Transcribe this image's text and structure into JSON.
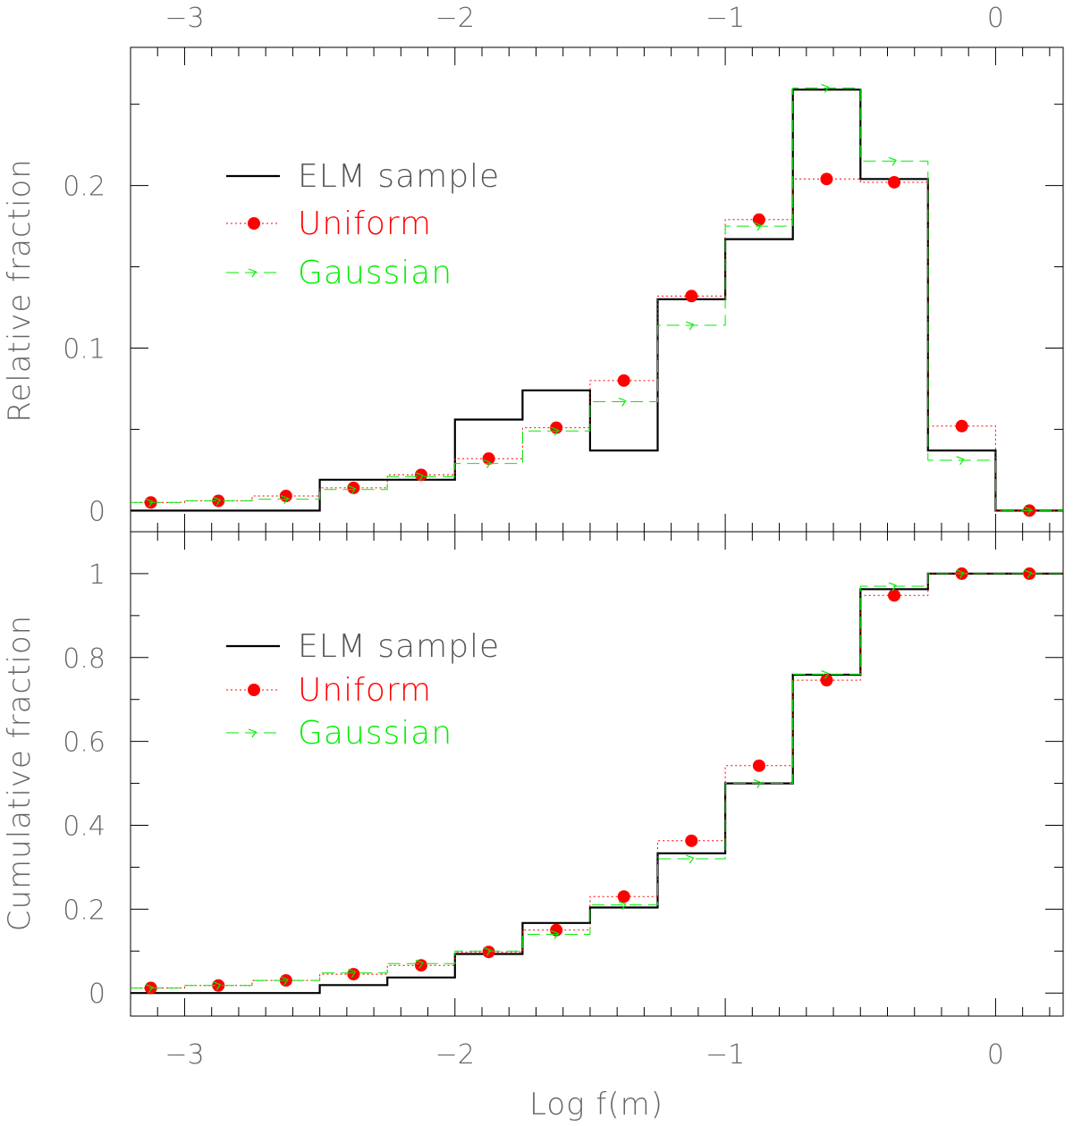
{
  "chart_data": [
    {
      "type": "step-histogram",
      "panel": "top",
      "title": "",
      "xlabel": "",
      "ylabel": "Relative fraction",
      "xlim": [
        -3.2,
        0.25
      ],
      "ylim": [
        -0.013,
        0.285
      ],
      "x_ticks": [
        -3,
        -2,
        -1,
        0
      ],
      "x_tick_labels": [
        "−3",
        "−2",
        "−1",
        "0"
      ],
      "y_ticks": [
        0,
        0.1,
        0.2
      ],
      "y_tick_labels": [
        "0",
        "0.1",
        "0.2"
      ],
      "bin_edges": [
        -3.25,
        -3.0,
        -2.75,
        -2.5,
        -2.25,
        -2.0,
        -1.75,
        -1.5,
        -1.25,
        -1.0,
        -0.75,
        -0.5,
        -0.25,
        0.0,
        0.25
      ],
      "series": [
        {
          "name": "ELM sample",
          "style": "solid-step",
          "color": "#000000",
          "values": [
            0,
            0,
            0,
            0.019,
            0.019,
            0.056,
            0.074,
            0.037,
            0.13,
            0.167,
            0.259,
            0.204,
            0.037,
            0
          ]
        },
        {
          "name": "Uniform",
          "style": "dotted-step-with-points",
          "color": "#ff0000",
          "values": [
            0.005,
            0.006,
            0.009,
            0.014,
            0.022,
            0.032,
            0.051,
            0.08,
            0.132,
            0.179,
            0.204,
            0.202,
            0.052,
            0
          ]
        },
        {
          "name": "Gaussian",
          "style": "dashed-step-with-triangles",
          "color": "#00ee00",
          "values": [
            0.005,
            0.006,
            0.007,
            0.013,
            0.021,
            0.029,
            0.049,
            0.067,
            0.114,
            0.175,
            0.26,
            0.215,
            0.031,
            0
          ]
        }
      ],
      "legend": {
        "position": "upper-left",
        "entries": [
          "ELM sample",
          "Uniform",
          "Gaussian"
        ]
      }
    },
    {
      "type": "step-histogram",
      "panel": "bottom",
      "title": "",
      "xlabel": "Log f(m)",
      "ylabel": "Cumulative fraction",
      "xlim": [
        -3.2,
        0.25
      ],
      "ylim": [
        -0.055,
        1.1
      ],
      "x_ticks": [
        -3,
        -2,
        -1,
        0
      ],
      "x_tick_labels": [
        "−3",
        "−2",
        "−1",
        "0"
      ],
      "y_ticks": [
        0,
        0.2,
        0.4,
        0.6,
        0.8,
        1
      ],
      "y_tick_labels": [
        "0",
        "0.2",
        "0.4",
        "0.6",
        "0.8",
        "1"
      ],
      "bin_edges": [
        -3.25,
        -3.0,
        -2.75,
        -2.5,
        -2.25,
        -2.0,
        -1.75,
        -1.5,
        -1.25,
        -1.0,
        -0.75,
        -0.5,
        -0.25,
        0.0,
        0.25
      ],
      "series": [
        {
          "name": "ELM sample",
          "style": "solid-step",
          "color": "#000000",
          "values": [
            0,
            0,
            0,
            0.019,
            0.037,
            0.093,
            0.167,
            0.204,
            0.333,
            0.5,
            0.759,
            0.963,
            1.0,
            1.0
          ]
        },
        {
          "name": "Uniform",
          "style": "dotted-step-with-points",
          "color": "#ff0000",
          "values": [
            0.012,
            0.018,
            0.03,
            0.045,
            0.066,
            0.098,
            0.15,
            0.23,
            0.363,
            0.542,
            0.746,
            0.948,
            1.0,
            1.0
          ]
        },
        {
          "name": "Gaussian",
          "style": "dashed-step-with-triangles",
          "color": "#00ee00",
          "values": [
            0.012,
            0.018,
            0.03,
            0.048,
            0.07,
            0.1,
            0.14,
            0.21,
            0.32,
            0.5,
            0.76,
            0.97,
            1.0,
            1.0
          ]
        }
      ],
      "legend": {
        "position": "upper-left",
        "entries": [
          "ELM sample",
          "Uniform",
          "Gaussian"
        ]
      }
    }
  ],
  "colors": {
    "axis": "#666666",
    "frame": "#000000"
  }
}
